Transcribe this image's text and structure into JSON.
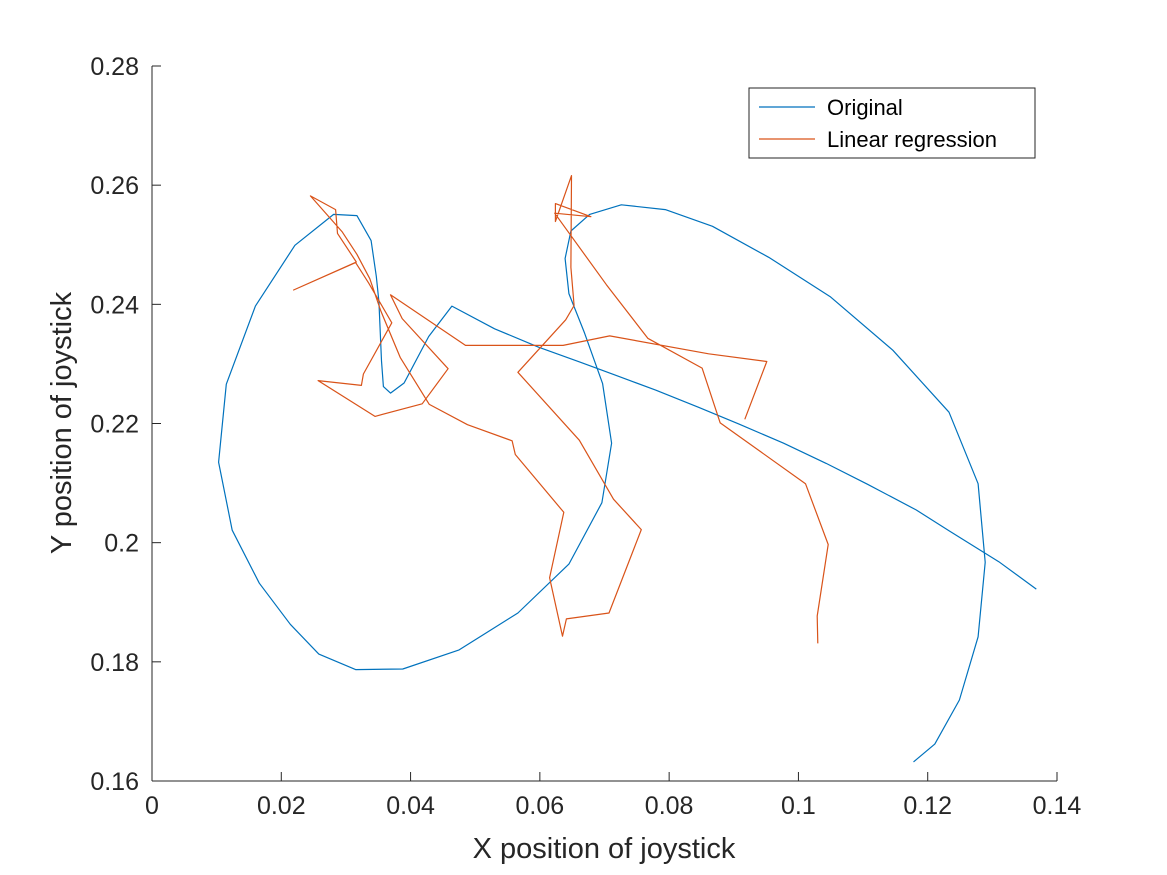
{
  "chart_data": {
    "type": "line",
    "xlabel": "X position of joystick",
    "ylabel": "Y position of joystick",
    "xlim": [
      0,
      0.14
    ],
    "ylim": [
      0.16,
      0.28
    ],
    "xticks": [
      "0",
      "0.02",
      "0.04",
      "0.06",
      "0.08",
      "0.1",
      "0.12",
      "0.14"
    ],
    "yticks": [
      "0.16",
      "0.18",
      "0.2",
      "0.22",
      "0.24",
      "0.26",
      "0.28"
    ],
    "grid": false,
    "legend_position": "top-right",
    "series": [
      {
        "name": "Original",
        "color": "#0072BD",
        "points": [
          [
            0.1368,
            0.1922
          ],
          [
            0.131,
            0.1968
          ],
          [
            0.1233,
            0.202
          ],
          [
            0.1182,
            0.2055
          ],
          [
            0.1107,
            0.2098
          ],
          [
            0.1043,
            0.2133
          ],
          [
            0.0977,
            0.2167
          ],
          [
            0.0908,
            0.2199
          ],
          [
            0.0846,
            0.2227
          ],
          [
            0.0779,
            0.2256
          ],
          [
            0.0717,
            0.2281
          ],
          [
            0.0662,
            0.2303
          ],
          [
            0.0598,
            0.2328
          ],
          [
            0.053,
            0.2359
          ],
          [
            0.0464,
            0.2397
          ],
          [
            0.0428,
            0.2346
          ],
          [
            0.039,
            0.2268
          ],
          [
            0.0369,
            0.2251
          ],
          [
            0.0358,
            0.2262
          ],
          [
            0.0355,
            0.2305
          ],
          [
            0.0351,
            0.2405
          ],
          [
            0.0347,
            0.2447
          ],
          [
            0.0339,
            0.2507
          ],
          [
            0.0317,
            0.2549
          ],
          [
            0.0281,
            0.2551
          ],
          [
            0.0221,
            0.2499
          ],
          [
            0.016,
            0.2397
          ],
          [
            0.0115,
            0.2266
          ],
          [
            0.0103,
            0.2135
          ],
          [
            0.0124,
            0.2021
          ],
          [
            0.0166,
            0.1932
          ],
          [
            0.0214,
            0.1863
          ],
          [
            0.0258,
            0.1813
          ],
          [
            0.0315,
            0.1787
          ],
          [
            0.0388,
            0.1788
          ],
          [
            0.0475,
            0.182
          ],
          [
            0.0566,
            0.1882
          ],
          [
            0.0645,
            0.1964
          ],
          [
            0.0696,
            0.2067
          ],
          [
            0.0711,
            0.2167
          ],
          [
            0.0697,
            0.2267
          ],
          [
            0.0669,
            0.2352
          ],
          [
            0.0645,
            0.2418
          ],
          [
            0.0639,
            0.2477
          ],
          [
            0.0648,
            0.2523
          ],
          [
            0.0677,
            0.2551
          ],
          [
            0.0726,
            0.2567
          ],
          [
            0.0794,
            0.2559
          ],
          [
            0.0867,
            0.2531
          ],
          [
            0.0954,
            0.2479
          ],
          [
            0.1049,
            0.2413
          ],
          [
            0.1146,
            0.2323
          ],
          [
            0.1233,
            0.2219
          ],
          [
            0.1278,
            0.2099
          ],
          [
            0.1289,
            0.1967
          ],
          [
            0.1278,
            0.1842
          ],
          [
            0.1249,
            0.1736
          ],
          [
            0.1211,
            0.1662
          ],
          [
            0.1178,
            0.1632
          ]
        ]
      },
      {
        "name": "Linear regression",
        "color": "#D95319",
        "points": [
          [
            0.103,
            0.1831
          ],
          [
            0.1029,
            0.1877
          ],
          [
            0.1046,
            0.1997
          ],
          [
            0.1011,
            0.2099
          ],
          [
            0.0879,
            0.2201
          ],
          [
            0.0851,
            0.2293
          ],
          [
            0.0767,
            0.2343
          ],
          [
            0.0703,
            0.2433
          ],
          [
            0.0623,
            0.2553
          ],
          [
            0.0679,
            0.2547
          ],
          [
            0.0624,
            0.2569
          ],
          [
            0.0624,
            0.2539
          ],
          [
            0.0649,
            0.2616
          ],
          [
            0.0648,
            0.2462
          ],
          [
            0.0653,
            0.2398
          ],
          [
            0.064,
            0.2374
          ],
          [
            0.0566,
            0.2286
          ],
          [
            0.0661,
            0.2172
          ],
          [
            0.0714,
            0.2073
          ],
          [
            0.0757,
            0.2022
          ],
          [
            0.0707,
            0.1882
          ],
          [
            0.0641,
            0.1872
          ],
          [
            0.0635,
            0.1843
          ],
          [
            0.0615,
            0.1941
          ],
          [
            0.0637,
            0.2051
          ],
          [
            0.0562,
            0.2148
          ],
          [
            0.0557,
            0.2171
          ],
          [
            0.0488,
            0.2198
          ],
          [
            0.0429,
            0.2232
          ],
          [
            0.0384,
            0.2311
          ],
          [
            0.0354,
            0.2389
          ],
          [
            0.0337,
            0.2443
          ],
          [
            0.0317,
            0.2484
          ],
          [
            0.0294,
            0.2522
          ],
          [
            0.0245,
            0.2582
          ],
          [
            0.0284,
            0.2559
          ],
          [
            0.0287,
            0.2519
          ],
          [
            0.0316,
            0.2471
          ],
          [
            0.0219,
            0.2424
          ],
          [
            0.0315,
            0.247
          ],
          [
            0.0335,
            0.2436
          ],
          [
            0.0371,
            0.2369
          ],
          [
            0.0327,
            0.2283
          ],
          [
            0.0324,
            0.2264
          ],
          [
            0.0257,
            0.2272
          ],
          [
            0.0345,
            0.2212
          ],
          [
            0.0418,
            0.2233
          ],
          [
            0.0458,
            0.2292
          ],
          [
            0.0387,
            0.2376
          ],
          [
            0.0369,
            0.2416
          ],
          [
            0.0485,
            0.2331
          ],
          [
            0.0636,
            0.2331
          ],
          [
            0.0708,
            0.2347
          ],
          [
            0.0861,
            0.2317
          ],
          [
            0.0951,
            0.2304
          ],
          [
            0.0917,
            0.2207
          ]
        ]
      }
    ],
    "extra_spikes": []
  }
}
